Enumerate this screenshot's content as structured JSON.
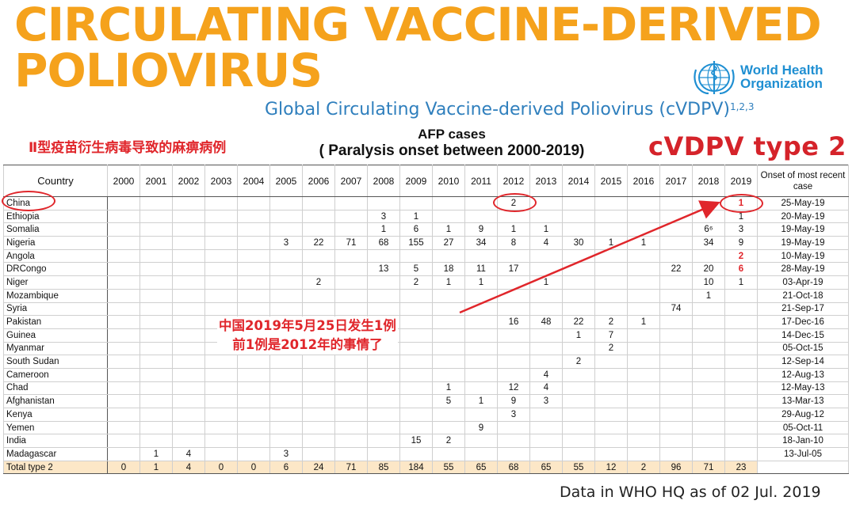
{
  "title": {
    "line1": "CIRCULATING VACCINE-DERIVED",
    "line2": "POLIOVIRUS"
  },
  "who_logo": {
    "line1": "World Health",
    "line2": "Organization",
    "icon": "who-emblem-icon"
  },
  "subtitle": {
    "text": "Global Circulating Vaccine-derived Poliovirus (cVDPV)",
    "refs": "1,2,3"
  },
  "banner_chinese": "Ⅱ型疫苗衍生病毒导致的麻痹病例",
  "afp_heading": {
    "line1": "AFP cases",
    "line2": "( Paralysis onset between 2000-2019)"
  },
  "type_label": "cVDPV type 2",
  "table": {
    "country_header": "Country",
    "years": [
      "2000",
      "2001",
      "2002",
      "2003",
      "2004",
      "2005",
      "2006",
      "2007",
      "2008",
      "2009",
      "2010",
      "2011",
      "2012",
      "2013",
      "2014",
      "2015",
      "2016",
      "2017",
      "2018",
      "2019"
    ],
    "onset_header": "Onset of most recent case",
    "rows": [
      {
        "country": "China",
        "cells": [
          "",
          "",
          "",
          "",
          "",
          "",
          "",
          "",
          "",
          "",
          "",
          "",
          "2",
          "",
          "",
          "",
          "",
          "",
          "",
          "1"
        ],
        "onset": "25-May-19"
      },
      {
        "country": "Ethiopia",
        "cells": [
          "",
          "",
          "",
          "",
          "",
          "",
          "",
          "",
          "3",
          "1",
          "",
          "",
          "",
          "",
          "",
          "",
          "",
          "",
          "",
          "1"
        ],
        "onset": "20-May-19"
      },
      {
        "country": "Somalia",
        "cells": [
          "",
          "",
          "",
          "",
          "",
          "",
          "",
          "",
          "1",
          "6",
          "1",
          "9",
          "1",
          "1",
          "",
          "",
          "",
          "",
          "6⁶",
          "3"
        ],
        "onset": "19-May-19"
      },
      {
        "country": "Nigeria",
        "cells": [
          "",
          "",
          "",
          "",
          "",
          "3",
          "22",
          "71",
          "68",
          "155",
          "27",
          "34",
          "8",
          "4",
          "30",
          "1",
          "1",
          "",
          "34",
          "9"
        ],
        "onset": "19-May-19"
      },
      {
        "country": "Angola",
        "cells": [
          "",
          "",
          "",
          "",
          "",
          "",
          "",
          "",
          "",
          "",
          "",
          "",
          "",
          "",
          "",
          "",
          "",
          "",
          "",
          "2"
        ],
        "onset": "10-May-19"
      },
      {
        "country": "DRCongo",
        "cells": [
          "",
          "",
          "",
          "",
          "",
          "",
          "",
          "",
          "13",
          "5",
          "18",
          "11",
          "17",
          "",
          "",
          "",
          "",
          "22",
          "20",
          "6"
        ],
        "onset": "28-May-19"
      },
      {
        "country": "Niger",
        "cells": [
          "",
          "",
          "",
          "",
          "",
          "",
          "2",
          "",
          "",
          "2",
          "1",
          "1",
          "",
          "1",
          "",
          "",
          "",
          "",
          "10",
          "1"
        ],
        "onset": "03-Apr-19"
      },
      {
        "country": "Mozambique",
        "cells": [
          "",
          "",
          "",
          "",
          "",
          "",
          "",
          "",
          "",
          "",
          "",
          "",
          "",
          "",
          "",
          "",
          "",
          "",
          "1",
          ""
        ],
        "onset": "21-Oct-18"
      },
      {
        "country": "Syria",
        "cells": [
          "",
          "",
          "",
          "",
          "",
          "",
          "",
          "",
          "",
          "",
          "",
          "",
          "",
          "",
          "",
          "",
          "",
          "74",
          "",
          ""
        ],
        "onset": "21-Sep-17"
      },
      {
        "country": "Pakistan",
        "cells": [
          "",
          "",
          "",
          "",
          "",
          "",
          "",
          "",
          "",
          "",
          "",
          "",
          "16",
          "48",
          "22",
          "2",
          "1",
          "",
          "",
          ""
        ],
        "onset": "17-Dec-16"
      },
      {
        "country": "Guinea",
        "cells": [
          "",
          "",
          "",
          "",
          "",
          "",
          "",
          "",
          "",
          "",
          "",
          "",
          "",
          "",
          "1",
          "7",
          "",
          "",
          "",
          ""
        ],
        "onset": "14-Dec-15"
      },
      {
        "country": "Myanmar",
        "cells": [
          "",
          "",
          "",
          "",
          "",
          "",
          "",
          "",
          "",
          "",
          "",
          "",
          "",
          "",
          "",
          "2",
          "",
          "",
          "",
          ""
        ],
        "onset": "05-Oct-15"
      },
      {
        "country": "South Sudan",
        "cells": [
          "",
          "",
          "",
          "",
          "",
          "",
          "",
          "",
          "",
          "",
          "",
          "",
          "",
          "",
          "2",
          "",
          "",
          "",
          "",
          ""
        ],
        "onset": "12-Sep-14"
      },
      {
        "country": "Cameroon",
        "cells": [
          "",
          "",
          "",
          "",
          "",
          "",
          "",
          "",
          "",
          "",
          "",
          "",
          "",
          "4",
          "",
          "",
          "",
          "",
          "",
          ""
        ],
        "onset": "12-Aug-13"
      },
      {
        "country": "Chad",
        "cells": [
          "",
          "",
          "",
          "",
          "",
          "",
          "",
          "",
          "",
          "",
          "1",
          "",
          "12",
          "4",
          "",
          "",
          "",
          "",
          "",
          ""
        ],
        "onset": "12-May-13"
      },
      {
        "country": "Afghanistan",
        "cells": [
          "",
          "",
          "",
          "",
          "",
          "",
          "",
          "",
          "",
          "",
          "5",
          "1",
          "9",
          "3",
          "",
          "",
          "",
          "",
          "",
          ""
        ],
        "onset": "13-Mar-13"
      },
      {
        "country": "Kenya",
        "cells": [
          "",
          "",
          "",
          "",
          "",
          "",
          "",
          "",
          "",
          "",
          "",
          "",
          "3",
          "",
          "",
          "",
          "",
          "",
          "",
          ""
        ],
        "onset": "29-Aug-12"
      },
      {
        "country": "Yemen",
        "cells": [
          "",
          "",
          "",
          "",
          "",
          "",
          "",
          "",
          "",
          "",
          "",
          "9",
          "",
          "",
          "",
          "",
          "",
          "",
          "",
          ""
        ],
        "onset": "05-Oct-11"
      },
      {
        "country": "India",
        "cells": [
          "",
          "",
          "",
          "",
          "",
          "",
          "",
          "",
          "",
          "15",
          "2",
          "",
          "",
          "",
          "",
          "",
          "",
          "",
          "",
          ""
        ],
        "onset": "18-Jan-10"
      },
      {
        "country": "Madagascar",
        "cells": [
          "",
          "1",
          "4",
          "",
          "",
          "3",
          "",
          "",
          "",
          "",
          "",
          "",
          "",
          "",
          "",
          "",
          "",
          "",
          "",
          ""
        ],
        "onset": "13-Jul-05"
      }
    ],
    "total": {
      "label": "Total type 2",
      "cells": [
        "0",
        "1",
        "4",
        "0",
        "0",
        "6",
        "24",
        "71",
        "85",
        "184",
        "55",
        "65",
        "68",
        "65",
        "55",
        "12",
        "2",
        "96",
        "71",
        "23"
      ]
    }
  },
  "annotation": {
    "line1": "中国2019年5月25日发生1例",
    "line2": "前1例是2012年的事情了"
  },
  "footer": "Data in WHO HQ as of 02 Jul. 2019",
  "colors": {
    "title": "#f5a21c",
    "accent_red": "#e0262b",
    "subtitle_blue": "#2f7fbd",
    "total_row": "#fce7c7"
  }
}
